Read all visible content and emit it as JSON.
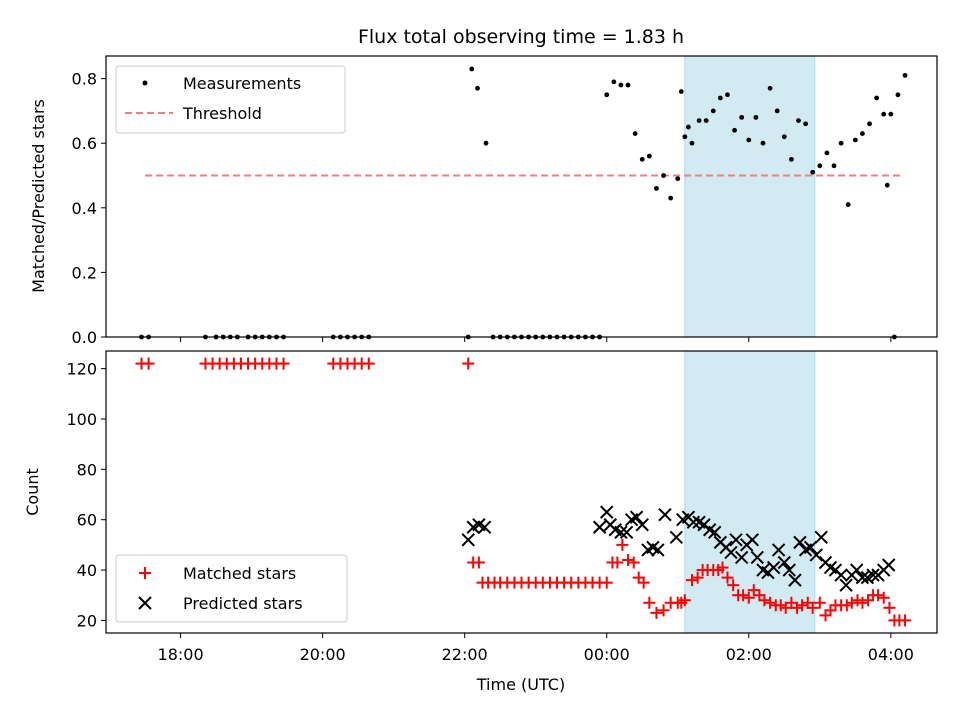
{
  "title": "Flux total observing time = 1.83 h",
  "colors": {
    "measurements": "#000000",
    "threshold": "#f08080",
    "matched": "#ff0000",
    "predicted": "#000000",
    "shade": "#add8e6"
  },
  "chart_data": [
    {
      "type": "scatter",
      "xlabel": "",
      "ylabel": "Matched/Predicted stars",
      "ylim": [
        0,
        0.87
      ],
      "xlim_hours": [
        16.95,
        28.65
      ],
      "yticks": [
        "0.0",
        "0.2",
        "0.4",
        "0.6",
        "0.8"
      ],
      "ytick_values": [
        0.0,
        0.2,
        0.4,
        0.6,
        0.8
      ],
      "shaded_interval_hours": [
        25.1,
        26.93
      ],
      "legend_position": "upper left",
      "threshold": {
        "name": "Threshold",
        "value": 0.5,
        "x_range_hours": [
          17.5,
          28.15
        ]
      },
      "series": [
        {
          "name": "Measurements",
          "marker": "dot",
          "x_hours": [
            17.45,
            17.55,
            18.35,
            18.5,
            18.6,
            18.7,
            18.8,
            18.95,
            19.05,
            19.15,
            19.25,
            19.35,
            19.45,
            20.15,
            20.25,
            20.35,
            20.45,
            20.55,
            20.65,
            22.05,
            22.1,
            22.18,
            22.3,
            22.4,
            22.5,
            22.6,
            22.7,
            22.8,
            22.9,
            23.0,
            23.1,
            23.2,
            23.3,
            23.4,
            23.5,
            23.6,
            23.7,
            23.8,
            23.9,
            24.0,
            24.1,
            24.2,
            24.3,
            24.4,
            24.5,
            24.6,
            24.7,
            24.8,
            24.9,
            25.0,
            25.1,
            25.2,
            25.3,
            25.4,
            25.5,
            25.6,
            25.7,
            25.8,
            25.9,
            26.0,
            26.1,
            26.2,
            26.3,
            26.4,
            26.5,
            26.6,
            26.7,
            26.8,
            26.9,
            27.0,
            27.1,
            27.2,
            27.3,
            27.4,
            27.5,
            27.6,
            27.7,
            27.8,
            27.9,
            28.0,
            28.1,
            28.2,
            25.05,
            25.15,
            27.95,
            28.05
          ],
          "y": [
            0,
            0,
            0,
            0,
            0,
            0,
            0,
            0,
            0,
            0,
            0,
            0,
            0,
            0,
            0,
            0,
            0,
            0,
            0,
            0,
            0.83,
            0.77,
            0.6,
            0,
            0,
            0,
            0,
            0,
            0,
            0,
            0,
            0,
            0,
            0,
            0,
            0,
            0,
            0,
            0,
            0.75,
            0.79,
            0.78,
            0.78,
            0.63,
            0.55,
            0.56,
            0.46,
            0.5,
            0.43,
            0.49,
            0.62,
            0.6,
            0.67,
            0.67,
            0.7,
            0.74,
            0.75,
            0.64,
            0.68,
            0.61,
            0.68,
            0.6,
            0.77,
            0.7,
            0.62,
            0.55,
            0.67,
            0.66,
            0.51,
            0.53,
            0.57,
            0.53,
            0.6,
            0.41,
            0.61,
            0.63,
            0.66,
            0.74,
            0.69,
            0.69,
            0.75,
            0.81,
            0.76,
            0.65,
            0.47,
            0
          ],
          "zero_tail_hours": [
            24.85,
            24.92,
            28.1,
            28.18
          ]
        }
      ]
    },
    {
      "type": "scatter",
      "xlabel": "Time (UTC)",
      "ylabel": "Count",
      "ylim": [
        15,
        127
      ],
      "yticks": [
        "20",
        "40",
        "60",
        "80",
        "100",
        "120"
      ],
      "ytick_values": [
        20,
        40,
        60,
        80,
        100,
        120
      ],
      "xticks": [
        "18:00",
        "20:00",
        "22:00",
        "00:00",
        "02:00",
        "04:00"
      ],
      "xtick_hours": [
        18,
        20,
        22,
        24,
        26,
        28
      ],
      "legend_position": "lower left",
      "series": [
        {
          "name": "Matched stars",
          "marker": "plus",
          "x_hours": [
            17.45,
            17.55,
            18.35,
            18.45,
            18.55,
            18.65,
            18.75,
            18.85,
            18.95,
            19.05,
            19.15,
            19.25,
            19.35,
            19.45,
            20.15,
            20.25,
            20.35,
            20.45,
            20.55,
            20.65,
            22.05,
            22.12,
            22.2,
            22.25,
            22.33,
            22.42,
            22.5,
            22.6,
            22.7,
            22.8,
            22.9,
            23.0,
            23.1,
            23.2,
            23.3,
            23.4,
            23.5,
            23.6,
            23.7,
            23.8,
            23.9,
            24.0,
            24.08,
            24.15,
            24.22,
            24.3,
            24.38,
            24.45,
            24.52,
            24.6,
            24.7,
            24.8,
            24.9,
            25.0,
            25.05,
            25.1,
            25.2,
            25.28,
            25.35,
            25.42,
            25.5,
            25.57,
            25.63,
            25.7,
            25.78,
            25.85,
            25.92,
            26.0,
            26.07,
            26.15,
            26.22,
            26.3,
            26.38,
            26.45,
            26.52,
            26.6,
            26.68,
            26.75,
            26.83,
            26.9,
            27.0,
            27.08,
            27.15,
            27.22,
            27.3,
            27.38,
            27.45,
            27.53,
            27.6,
            27.68,
            27.75,
            27.82,
            27.9,
            27.98,
            28.05,
            28.12,
            28.2
          ],
          "y": [
            122,
            122,
            122,
            122,
            122,
            122,
            122,
            122,
            122,
            122,
            122,
            122,
            122,
            122,
            122,
            122,
            122,
            122,
            122,
            122,
            122,
            43,
            43,
            35,
            35,
            35,
            35,
            35,
            35,
            35,
            35,
            35,
            35,
            35,
            35,
            35,
            35,
            35,
            35,
            35,
            35,
            35,
            43,
            43,
            50,
            44,
            43,
            37,
            35,
            27,
            23,
            24,
            27,
            27,
            27,
            28,
            36,
            37,
            40,
            40,
            40,
            40,
            41,
            37,
            34,
            30,
            30,
            29,
            32,
            30,
            28,
            27,
            26,
            26,
            25,
            27,
            25,
            26,
            27,
            25,
            27,
            22,
            24,
            26,
            26,
            26,
            27,
            28,
            27,
            28,
            30,
            30,
            29,
            25,
            20,
            20,
            20
          ],
          "shaded_interval_hours": [
            25.1,
            26.93
          ]
        },
        {
          "name": "Predicted stars",
          "marker": "x",
          "x_hours": [
            22.05,
            22.12,
            22.2,
            22.28,
            23.9,
            24.0,
            24.05,
            24.12,
            24.2,
            24.28,
            24.35,
            24.42,
            24.5,
            24.58,
            24.65,
            24.72,
            24.82,
            24.98,
            25.07,
            25.15,
            25.22,
            25.3,
            25.37,
            25.45,
            25.52,
            25.6,
            25.68,
            25.75,
            25.82,
            25.9,
            25.97,
            26.05,
            26.12,
            26.2,
            26.27,
            26.35,
            26.42,
            26.5,
            26.57,
            26.65,
            26.72,
            26.8,
            26.87,
            26.95,
            27.02,
            27.08,
            27.15,
            27.22,
            27.3,
            27.37,
            27.45,
            27.52,
            27.6,
            27.67,
            27.75,
            27.82,
            27.9,
            27.97
          ],
          "y": [
            52,
            57,
            58,
            57,
            57,
            63,
            58,
            56,
            55,
            55,
            60,
            61,
            58,
            48,
            49,
            48,
            62,
            53,
            60,
            61,
            59,
            59,
            58,
            56,
            55,
            51,
            49,
            47,
            52,
            45,
            50,
            52,
            45,
            40,
            39,
            41,
            48,
            43,
            40,
            36,
            51,
            48,
            49,
            46,
            53,
            43,
            41,
            40,
            38,
            34,
            38,
            40,
            37,
            37,
            38,
            38,
            40,
            42
          ]
        }
      ]
    }
  ]
}
